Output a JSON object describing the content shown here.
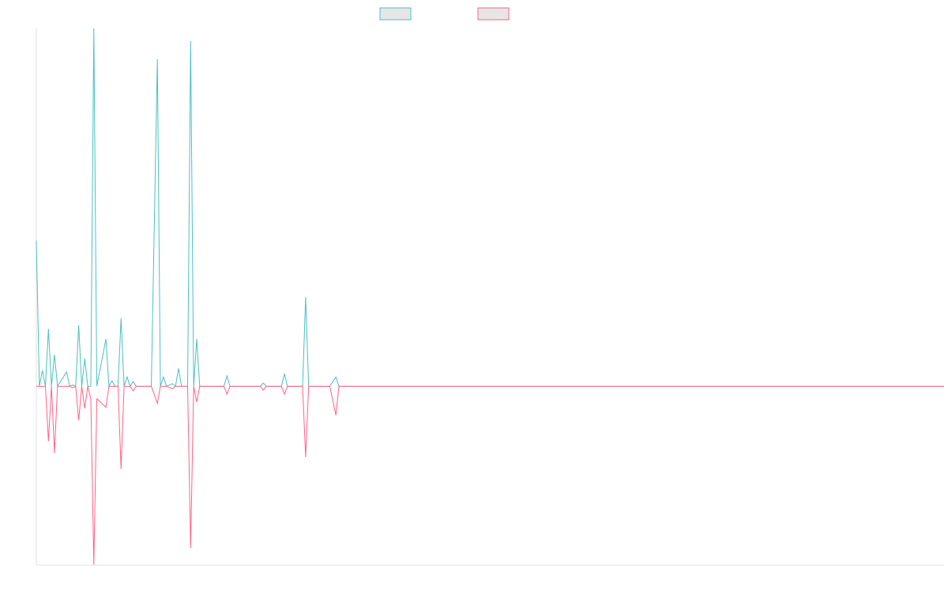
{
  "chart_data": {
    "type": "line",
    "x": [
      0,
      1,
      2,
      3,
      4,
      5,
      6,
      7,
      10,
      11,
      12,
      13,
      14,
      15,
      16,
      17,
      18,
      19,
      20,
      23,
      24,
      25,
      26,
      27,
      28,
      29,
      30,
      31,
      32,
      33,
      36,
      38,
      40,
      41,
      42,
      43,
      45,
      46,
      47,
      48,
      50,
      51,
      52,
      53,
      54,
      62,
      63,
      64,
      74,
      75,
      76,
      81,
      82,
      83,
      88,
      89,
      90,
      97,
      99,
      100,
      300
    ],
    "series": [
      {
        "color": "#4bc0c0",
        "values": [
          40.7,
          0,
          4.4,
          0,
          16,
          0,
          8.8,
          0,
          4,
          0,
          0.4,
          0,
          17,
          0,
          7.7,
          0,
          0,
          100,
          0,
          13.2,
          0,
          1.5,
          0,
          0,
          19,
          0,
          2.6,
          0,
          1.3,
          0,
          0,
          0,
          91.4,
          0,
          2.6,
          0,
          0.7,
          0,
          5,
          0,
          0,
          96.5,
          0,
          13.2,
          0,
          0,
          2.9,
          0,
          0,
          0.9,
          0,
          0,
          3.5,
          0,
          0,
          24.9,
          0,
          0,
          2.6,
          0,
          0
        ]
      },
      {
        "color": "#ff6384",
        "values": [
          0,
          0,
          0,
          0,
          -15.4,
          0,
          -18.7,
          0,
          0,
          0,
          -0.4,
          0,
          -9.5,
          0,
          -6.2,
          0,
          -3.5,
          -49.8,
          -3.5,
          -5.9,
          0,
          0,
          0,
          0,
          -23.1,
          0,
          0,
          0,
          -1.3,
          0,
          0,
          0,
          -4.8,
          0,
          0,
          0,
          -0.7,
          0,
          0,
          0,
          0,
          -45.2,
          0,
          -4.4,
          0,
          0,
          -2.2,
          0,
          0,
          -1.1,
          0,
          0,
          -2.2,
          0,
          0,
          -19.8,
          0,
          0,
          -8.1,
          0,
          0
        ]
      }
    ],
    "xlim": [
      0,
      300
    ],
    "ylim": [
      -50,
      100
    ]
  }
}
